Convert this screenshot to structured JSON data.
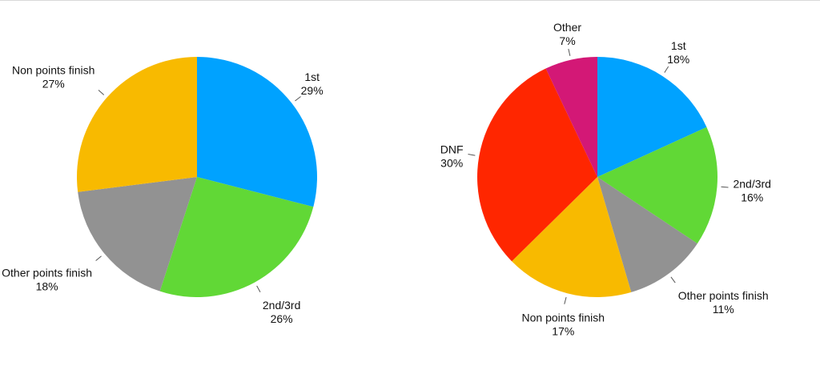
{
  "chart_data": [
    {
      "type": "pie",
      "start": "12 o'clock",
      "direction": "clockwise",
      "slices": [
        {
          "label": "1st",
          "value": 29,
          "value_text": "29%",
          "color": "#00A2FF"
        },
        {
          "label": "2nd/3rd",
          "value": 26,
          "value_text": "26%",
          "color": "#61D836"
        },
        {
          "label": "Other points finish",
          "value": 18,
          "value_text": "18%",
          "color": "#929292"
        },
        {
          "label": "Non points finish",
          "value": 27,
          "value_text": "27%",
          "color": "#F8BA00"
        }
      ]
    },
    {
      "type": "pie",
      "start": "12 o'clock",
      "direction": "clockwise",
      "slices": [
        {
          "label": "1st",
          "value": 18,
          "value_text": "18%",
          "color": "#00A2FF"
        },
        {
          "label": "2nd/3rd",
          "value": 16,
          "value_text": "16%",
          "color": "#61D836"
        },
        {
          "label": "Other points finish",
          "value": 11,
          "value_text": "11%",
          "color": "#929292"
        },
        {
          "label": "Non points finish",
          "value": 17,
          "value_text": "17%",
          "color": "#F8BA00"
        },
        {
          "label": "DNF",
          "value": 30,
          "value_text": "30%",
          "color": "#FF2600"
        },
        {
          "label": "Other",
          "value": 7,
          "value_text": "7%",
          "color": "#D31876"
        }
      ]
    }
  ]
}
